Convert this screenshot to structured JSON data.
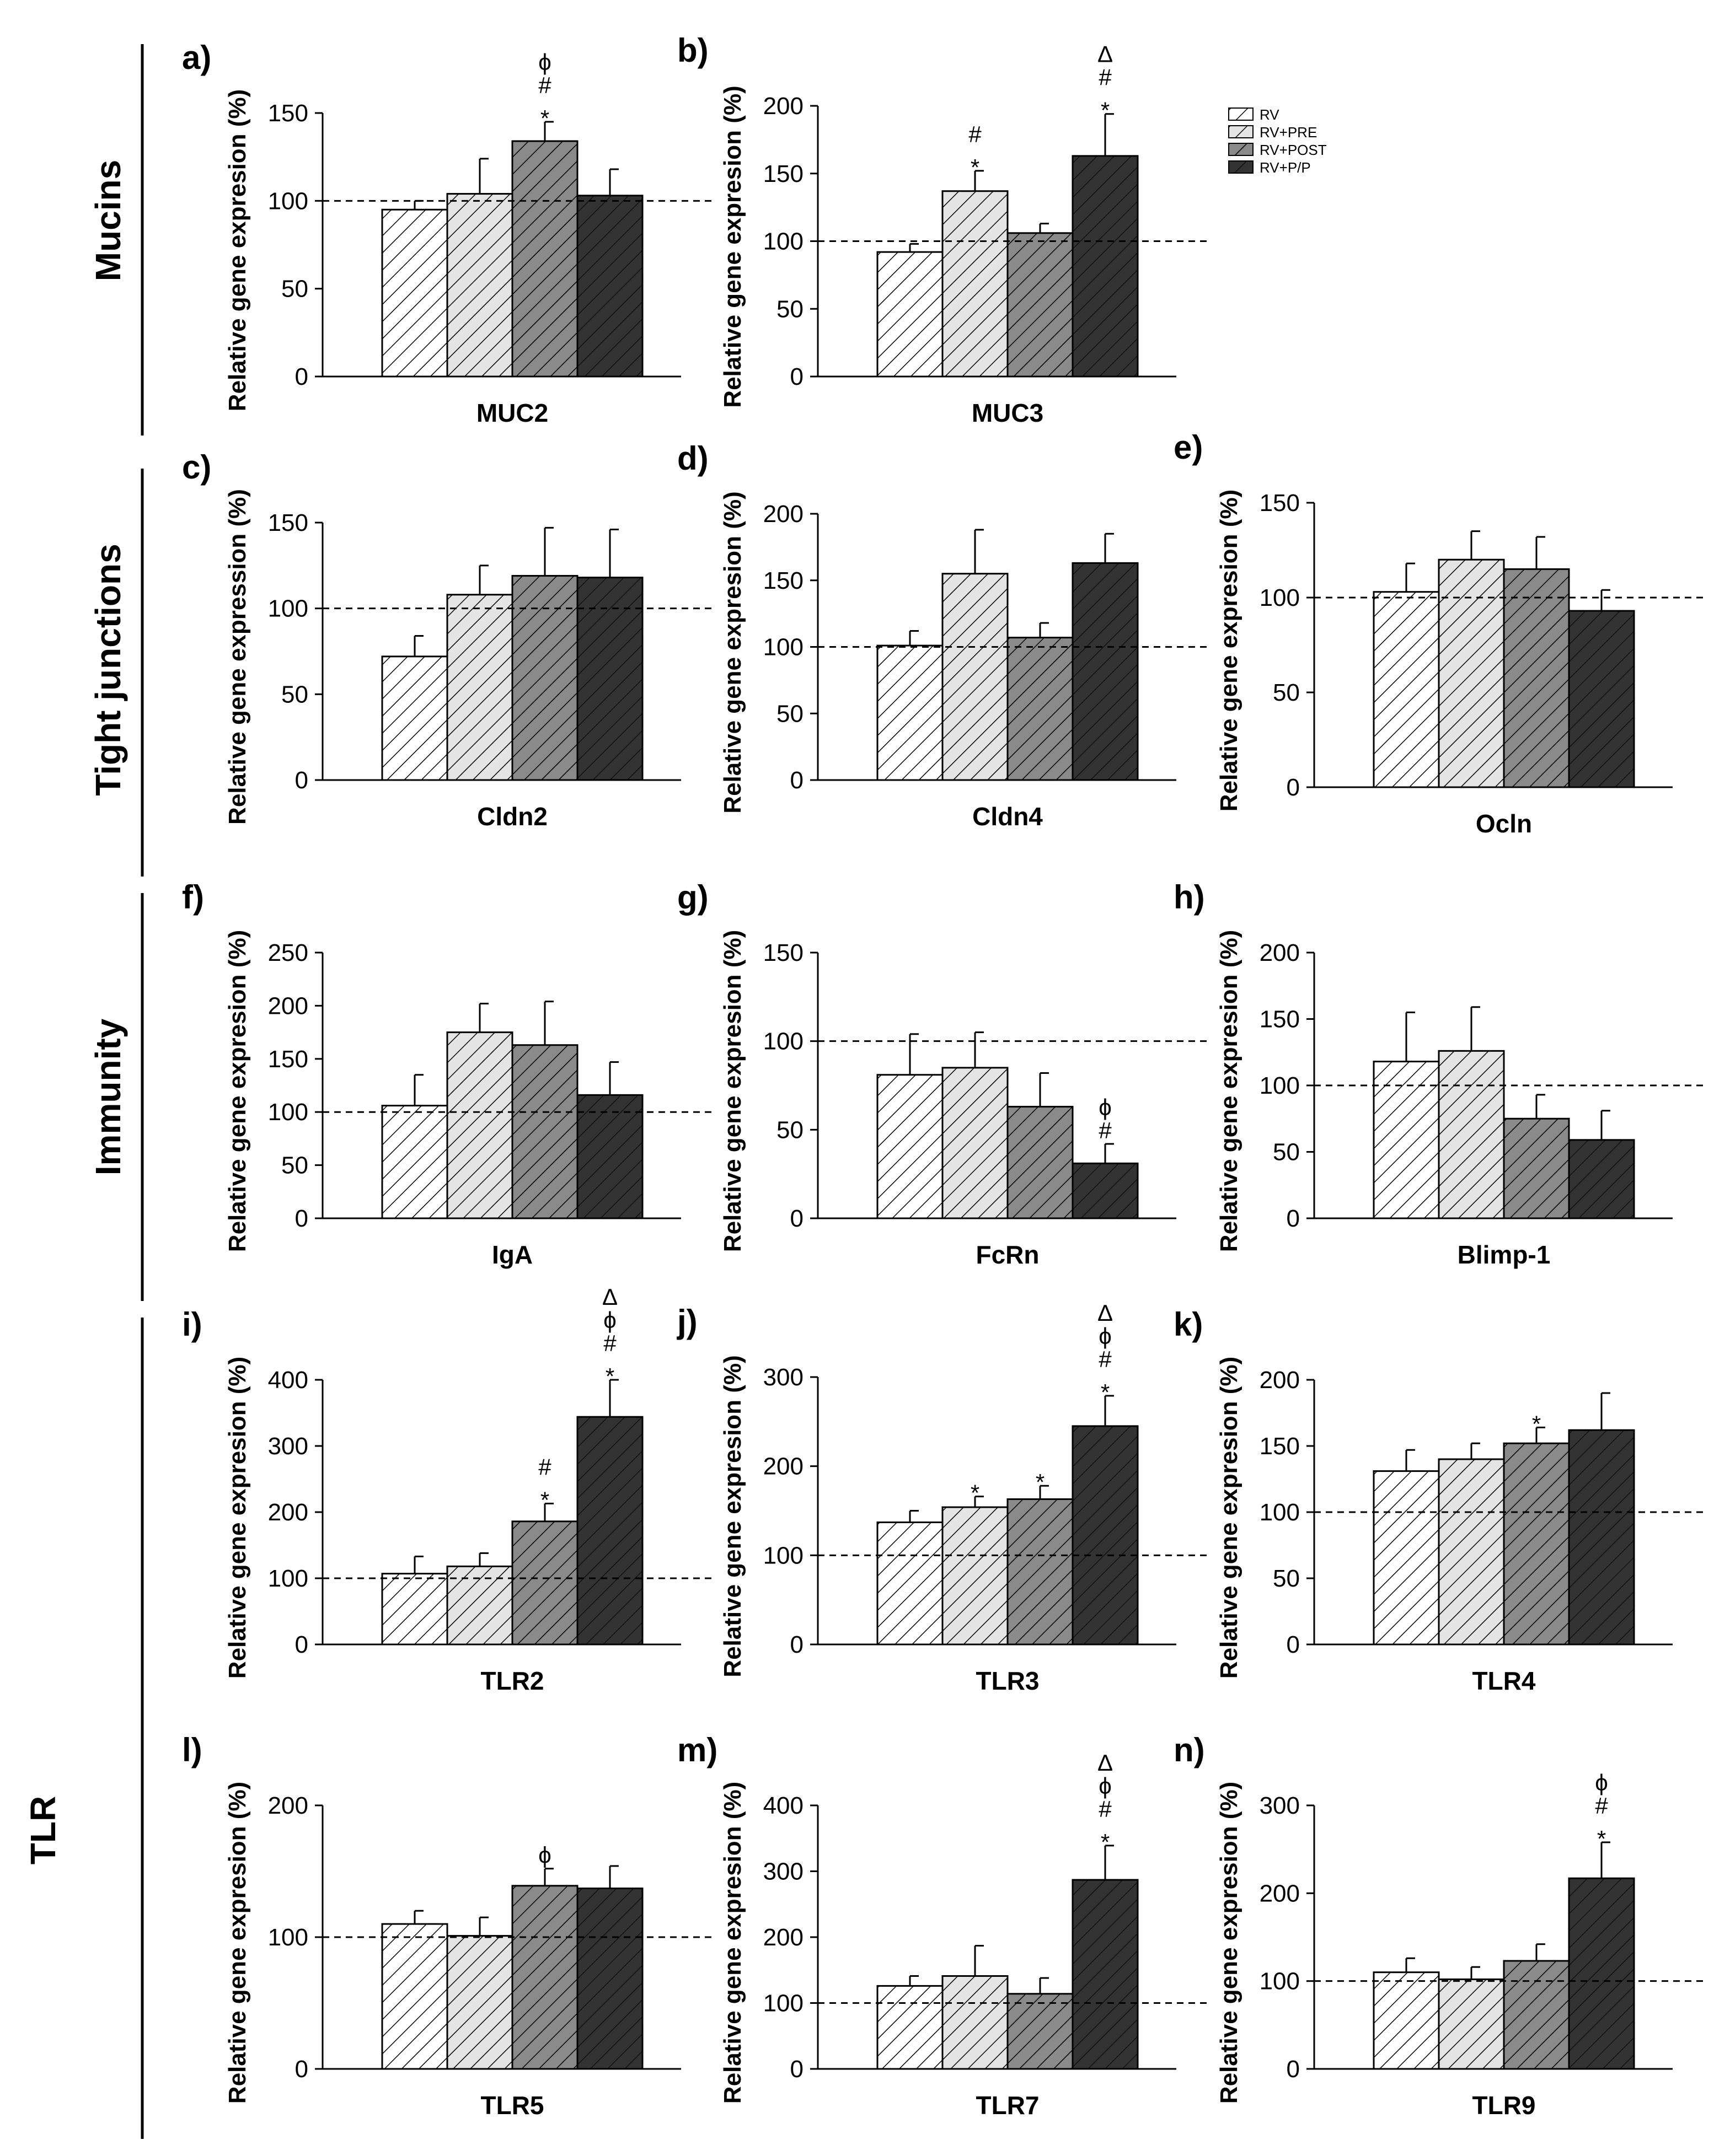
{
  "sections": [
    {
      "label": "Mucins"
    },
    {
      "label": "Tight junctions"
    },
    {
      "label": "Immunity"
    },
    {
      "label": "TLR"
    }
  ],
  "legend": [
    {
      "label": "RV",
      "color": "#ffffff"
    },
    {
      "label": "RV+PRE",
      "color": "#e4e4e4"
    },
    {
      "label": "RV+POST",
      "color": "#8a8a8a"
    },
    {
      "label": "RV+P/P",
      "color": "#333333"
    }
  ],
  "chart_data": [
    {
      "type": "bar",
      "letter": "a)",
      "gene": "MUC2",
      "ylabel": "Relative gene expresion (%)",
      "ylim": [
        0,
        150
      ],
      "ticks": [
        0,
        50,
        100,
        150
      ],
      "baseline": 100,
      "categories": [
        "RV",
        "RV+PRE",
        "RV+POST",
        "RV+P/P"
      ],
      "values": [
        95,
        104,
        134,
        103
      ],
      "errors": [
        5,
        20,
        11,
        15
      ],
      "marks": [
        [],
        [],
        [
          "*",
          "#",
          "ϕ"
        ],
        []
      ]
    },
    {
      "type": "bar",
      "letter": "b)",
      "gene": "MUC3",
      "ylabel": "Relative gene expresion (%)",
      "ylim": [
        0,
        200
      ],
      "ticks": [
        0,
        50,
        100,
        150,
        200
      ],
      "baseline": 100,
      "categories": [
        "RV",
        "RV+PRE",
        "RV+POST",
        "RV+P/P"
      ],
      "values": [
        92,
        137,
        106,
        163
      ],
      "errors": [
        6,
        15,
        7,
        31
      ],
      "marks": [
        [],
        [
          "*",
          "#"
        ],
        [],
        [
          "*",
          "#",
          "Δ"
        ]
      ]
    },
    {
      "type": "bar",
      "letter": "c)",
      "gene": "Cldn2",
      "ylabel": "Relative gene expression (%)",
      "ylim": [
        0,
        150
      ],
      "ticks": [
        0,
        50,
        100,
        150
      ],
      "baseline": 100,
      "categories": [
        "RV",
        "RV+PRE",
        "RV+POST",
        "RV+P/P"
      ],
      "values": [
        72,
        108,
        119,
        118
      ],
      "errors": [
        12,
        17,
        28,
        28
      ],
      "marks": [
        [],
        [],
        [],
        []
      ]
    },
    {
      "type": "bar",
      "letter": "d)",
      "gene": "Cldn4",
      "ylabel": "Relative gene expresion (%)",
      "ylim": [
        0,
        200
      ],
      "ticks": [
        0,
        50,
        100,
        150,
        200
      ],
      "baseline": 100,
      "categories": [
        "RV",
        "RV+PRE",
        "RV+POST",
        "RV+P/P"
      ],
      "values": [
        101,
        155,
        107,
        163
      ],
      "errors": [
        11,
        33,
        11,
        22
      ],
      "marks": [
        [],
        [],
        [],
        []
      ]
    },
    {
      "type": "bar",
      "letter": "e)",
      "gene": "Ocln",
      "ylabel": "Relative gene expresion (%)",
      "ylim": [
        0,
        150
      ],
      "ticks": [
        0,
        50,
        100,
        150
      ],
      "baseline": 100,
      "categories": [
        "RV",
        "RV+PRE",
        "RV+POST",
        "RV+P/P"
      ],
      "values": [
        103,
        120,
        115,
        93
      ],
      "errors": [
        15,
        15,
        17,
        11
      ],
      "marks": [
        [],
        [],
        [],
        []
      ]
    },
    {
      "type": "bar",
      "letter": "f)",
      "gene": "IgA",
      "ylabel": "Relative gene expresion (%)",
      "ylim": [
        0,
        250
      ],
      "ticks": [
        0,
        50,
        100,
        150,
        200,
        250
      ],
      "baseline": 100,
      "categories": [
        "RV",
        "RV+PRE",
        "RV+POST",
        "RV+P/P"
      ],
      "values": [
        106,
        175,
        163,
        116
      ],
      "errors": [
        29,
        27,
        41,
        31
      ],
      "marks": [
        [],
        [],
        [],
        []
      ]
    },
    {
      "type": "bar",
      "letter": "g)",
      "gene": "FcRn",
      "ylabel": "Relative gene expresion (%)",
      "ylim": [
        0,
        150
      ],
      "ticks": [
        0,
        50,
        100,
        150
      ],
      "baseline": 100,
      "categories": [
        "RV",
        "RV+PRE",
        "RV+POST",
        "RV+P/P"
      ],
      "values": [
        81,
        85,
        63,
        31
      ],
      "errors": [
        23,
        20,
        19,
        11
      ],
      "marks": [
        [],
        [],
        [],
        [
          "#",
          "ϕ"
        ]
      ]
    },
    {
      "type": "bar",
      "letter": "h)",
      "gene": "Blimp-1",
      "ylabel": "Relative gene expresion (%)",
      "ylim": [
        0,
        200
      ],
      "ticks": [
        0,
        50,
        100,
        150,
        200
      ],
      "baseline": 100,
      "categories": [
        "RV",
        "RV+PRE",
        "RV+POST",
        "RV+P/P"
      ],
      "values": [
        118,
        126,
        75,
        59
      ],
      "errors": [
        37,
        33,
        18,
        22
      ],
      "marks": [
        [],
        [],
        [],
        []
      ]
    },
    {
      "type": "bar",
      "letter": "i)",
      "gene": "TLR2",
      "ylabel": "Relative gene expresion (%)",
      "ylim": [
        0,
        400
      ],
      "ticks": [
        0,
        100,
        200,
        300,
        400
      ],
      "baseline": 100,
      "categories": [
        "RV",
        "RV+PRE",
        "RV+POST",
        "RV+P/P"
      ],
      "values": [
        107,
        118,
        186,
        344
      ],
      "errors": [
        26,
        20,
        27,
        56
      ],
      "marks": [
        [],
        [],
        [
          "*",
          "#"
        ],
        [
          "*",
          "#",
          "ϕ",
          "Δ"
        ]
      ]
    },
    {
      "type": "bar",
      "letter": "j)",
      "gene": "TLR3",
      "ylabel": "Relative gene expresion (%)",
      "ylim": [
        0,
        300
      ],
      "ticks": [
        0,
        100,
        200,
        300
      ],
      "baseline": 100,
      "categories": [
        "RV",
        "RV+PRE",
        "RV+POST",
        "RV+P/P"
      ],
      "values": [
        137,
        154,
        163,
        245
      ],
      "errors": [
        13,
        12,
        15,
        34
      ],
      "marks": [
        [],
        [
          "*"
        ],
        [
          "*"
        ],
        [
          "*",
          "#",
          "ϕ",
          "Δ"
        ]
      ]
    },
    {
      "type": "bar",
      "letter": "k)",
      "gene": "TLR4",
      "ylabel": "Relative gene expresion (%)",
      "ylim": [
        0,
        200
      ],
      "ticks": [
        0,
        50,
        100,
        150,
        200
      ],
      "baseline": 100,
      "categories": [
        "RV",
        "RV+PRE",
        "RV+POST",
        "RV+P/P"
      ],
      "values": [
        131,
        140,
        152,
        162
      ],
      "errors": [
        16,
        12,
        12,
        28
      ],
      "marks": [
        [],
        [],
        [
          "*"
        ],
        []
      ]
    },
    {
      "type": "bar",
      "letter": "l)",
      "gene": "TLR5",
      "ylabel": "Relative gene expresion (%)",
      "ylim": [
        0,
        200
      ],
      "ticks": [
        0,
        100,
        200
      ],
      "baseline": 100,
      "categories": [
        "RV",
        "RV+PRE",
        "RV+POST",
        "RV+P/P"
      ],
      "values": [
        110,
        101,
        139,
        137
      ],
      "errors": [
        10,
        14,
        13,
        17
      ],
      "marks": [
        [],
        [],
        [
          "ϕ"
        ],
        []
      ]
    },
    {
      "type": "bar",
      "letter": "m)",
      "gene": "TLR7",
      "ylabel": "Relative gene expresion (%)",
      "ylim": [
        0,
        400
      ],
      "ticks": [
        0,
        100,
        200,
        300,
        400
      ],
      "baseline": 100,
      "categories": [
        "RV",
        "RV+PRE",
        "RV+POST",
        "RV+P/P"
      ],
      "values": [
        126,
        141,
        114,
        287
      ],
      "errors": [
        15,
        46,
        24,
        52
      ],
      "marks": [
        [],
        [],
        [],
        [
          "*",
          "#",
          "ϕ",
          "Δ"
        ]
      ]
    },
    {
      "type": "bar",
      "letter": "n)",
      "gene": "TLR9",
      "ylabel": "Relative gene expresion (%)",
      "ylim": [
        0,
        300
      ],
      "ticks": [
        0,
        100,
        200,
        300
      ],
      "baseline": 100,
      "categories": [
        "RV",
        "RV+PRE",
        "RV+POST",
        "RV+P/P"
      ],
      "values": [
        110,
        102,
        123,
        217
      ],
      "errors": [
        16,
        14,
        19,
        41
      ],
      "marks": [
        [],
        [],
        [],
        [
          "*",
          "#",
          "ϕ"
        ]
      ]
    }
  ]
}
